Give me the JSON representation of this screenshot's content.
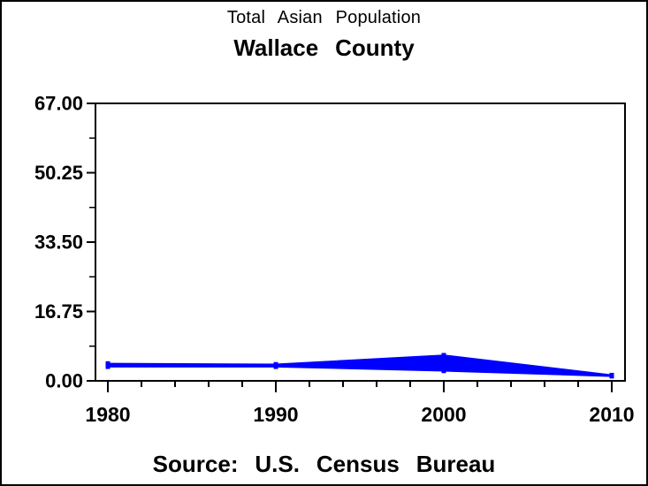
{
  "titles": {
    "title": "Total Asian Population",
    "subtitle": "Wallace County"
  },
  "footnote": {
    "text": "Source: U.S. Census Bureau"
  },
  "chart_data": {
    "type": "area",
    "subtype": "band-between-upper-and-lower-series",
    "title": "Total Asian Population",
    "subtitle": "Wallace County",
    "source_note": "Source: U.S. Census Bureau",
    "x": [
      1980,
      1990,
      2000,
      2010
    ],
    "series": [
      {
        "name": "upper-bound",
        "values": [
          4.2,
          4.0,
          6.2,
          1.4
        ]
      },
      {
        "name": "lower-bound",
        "values": [
          3.4,
          3.4,
          2.4,
          1.1
        ]
      }
    ],
    "xlabel": "",
    "ylabel": "",
    "xlim": [
      1980,
      2010
    ],
    "ylim": [
      0,
      67
    ],
    "yticks": {
      "values": [
        0,
        16.75,
        33.5,
        50.25,
        67
      ],
      "labels": [
        "0.00",
        "16.75",
        "33.50",
        "50.25",
        "67.00"
      ]
    },
    "ytick_minor_values": [
      8.375,
      25.125,
      41.875,
      58.625
    ],
    "xticks": {
      "values": [
        1980,
        1990,
        2000,
        2010
      ],
      "labels": [
        "1980",
        "1990",
        "2000",
        "2010"
      ]
    },
    "xtick_minor_values": [
      1982,
      1984,
      1986,
      1988,
      1992,
      1994,
      1996,
      1998,
      2002,
      2004,
      2006,
      2008
    ],
    "grid": false,
    "legend": false,
    "marker": "square",
    "fill_color": "#0000ff",
    "line_color": "#0000ff",
    "axis_color": "#000000",
    "background_color": "#ffffff"
  }
}
